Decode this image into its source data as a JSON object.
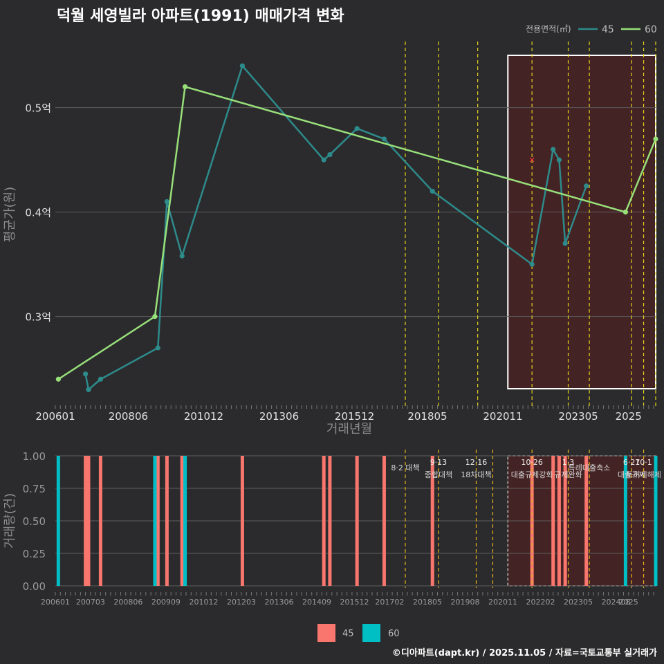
{
  "chart_data": [
    {
      "type": "line",
      "title": "덕월 세영빌라 아파트(1991) 매매가격 변화",
      "xlabel": "거래년월",
      "ylabel": "평균가(원)",
      "ylim": [
        0.215,
        0.56
      ],
      "y_ticks": [
        {
          "value": 0.3,
          "label": "0.3억"
        },
        {
          "value": 0.4,
          "label": "0.4억"
        },
        {
          "value": 0.5,
          "label": "0.5억"
        }
      ],
      "x_ticks": [
        "200601",
        "200806",
        "201012",
        "201306",
        "201512",
        "201805",
        "202011",
        "202305",
        "2025"
      ],
      "legend": {
        "title": "전용면적(㎡)",
        "placement": "top-right"
      },
      "series": [
        {
          "name": "45",
          "color": "#2e8b8b",
          "points": [
            [
              2007.0,
              0.245
            ],
            [
              2007.1,
              0.23
            ],
            [
              2007.5,
              0.24
            ],
            [
              2009.4,
              0.27
            ],
            [
              2009.7,
              0.41
            ],
            [
              2010.2,
              0.358
            ],
            [
              2012.2,
              0.54
            ],
            [
              2014.9,
              0.45
            ],
            [
              2015.1,
              0.455
            ],
            [
              2016.0,
              0.48
            ],
            [
              2016.9,
              0.47
            ],
            [
              2018.5,
              0.42
            ],
            [
              2021.8,
              0.35
            ],
            [
              2022.5,
              0.46
            ],
            [
              2022.7,
              0.45
            ],
            [
              2022.9,
              0.37
            ],
            [
              2023.6,
              0.425
            ]
          ]
        },
        {
          "name": "60",
          "color": "#98e07a",
          "points": [
            [
              2006.1,
              0.24
            ],
            [
              2009.3,
              0.3
            ],
            [
              2010.3,
              0.52
            ],
            [
              2024.9,
              0.4
            ],
            [
              2025.9,
              0.47
            ]
          ]
        }
      ],
      "highlight_range": [
        2021.0,
        2025.9
      ],
      "marker_x": {
        "x": 2021.8,
        "y": 0.45,
        "symbol": "×"
      },
      "event_lines": [
        2017.6,
        2018.7,
        2020.0,
        2021.8,
        2023.0,
        2023.7,
        2025.1,
        2025.5,
        2025.9
      ]
    },
    {
      "type": "bar",
      "ylabel": "거래량(건)",
      "ylim": [
        0,
        1
      ],
      "y_ticks": [
        "0.00",
        "0.25",
        "0.50",
        "0.75",
        "1.00"
      ],
      "x_ticks": [
        "200601",
        "200703",
        "200806",
        "200909",
        "201012",
        "201203",
        "201306",
        "201409",
        "201512",
        "201702",
        "201805",
        "201908",
        "202011",
        "202202",
        "202305",
        "202408",
        "2025"
      ],
      "legend": {
        "placement": "bottom"
      },
      "series": [
        {
          "name": "45",
          "color": "#f8766d",
          "x": [
            2007.0,
            2007.1,
            2007.5,
            2009.4,
            2009.7,
            2010.2,
            2012.2,
            2014.9,
            2015.1,
            2016.0,
            2016.9,
            2018.5,
            2021.8,
            2022.5,
            2022.7,
            2022.9,
            2023.6
          ],
          "values": [
            1,
            1,
            1,
            1,
            1,
            1,
            1,
            1,
            1,
            1,
            1,
            1,
            1,
            1,
            1,
            1,
            1
          ]
        },
        {
          "name": "60",
          "color": "#00bfc4",
          "x": [
            2006.1,
            2009.3,
            2010.3,
            2024.9,
            2025.9
          ],
          "values": [
            1,
            1,
            1,
            1,
            1
          ]
        }
      ],
      "highlight_range": [
        2021.0,
        2025.9
      ],
      "events": [
        {
          "x": 2017.6,
          "date": "",
          "label": "8·2 대책"
        },
        {
          "x": 2018.7,
          "date": "9·13",
          "label": "종합대책"
        },
        {
          "x": 2019.95,
          "date": "12·16",
          "label": "18차대책"
        },
        {
          "x": 2020.5,
          "date": "",
          "label": ""
        },
        {
          "x": 2021.8,
          "date": "10·26",
          "label": "대출규제강화"
        },
        {
          "x": 2023.0,
          "date": "1·3",
          "label": "규제완화"
        },
        {
          "x": 2023.7,
          "date": "",
          "label": "특례대출축소"
        },
        {
          "x": 2025.1,
          "date": "6·27",
          "label": "대출규제"
        },
        {
          "x": 2025.5,
          "date": "10·1",
          "label": "토허제해제"
        }
      ]
    }
  ],
  "footer": "©디아파트(dapt.kr) / 2025.11.05 / 자료=국토교통부 실거래가"
}
